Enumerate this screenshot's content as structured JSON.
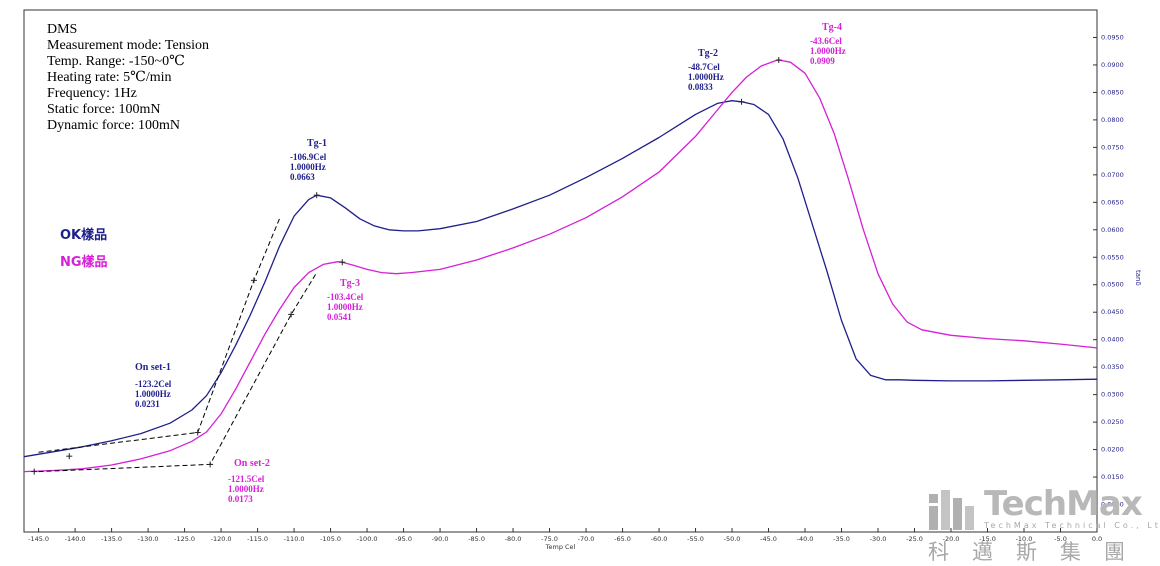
{
  "info_lines": [
    "DMS",
    "Measurement mode: Tension",
    "Temp. Range: -150~0℃",
    "Heating rate: 5℃/min",
    "Frequency: 1Hz",
    "Static force: 100mN",
    "Dynamic force: 100mN"
  ],
  "legend": {
    "ok": "OK樣品",
    "ng": "NG樣品",
    "ok_color": "#1f1f8c",
    "ng_color": "#d61fd6"
  },
  "annotations": {
    "tg1": {
      "title": "Tg-1",
      "lines": [
        "-106.9Cel",
        "1.0000Hz",
        "0.0663"
      ]
    },
    "tg2": {
      "title": "Tg-2",
      "lines": [
        "-48.7Cel",
        "1.0000Hz",
        "0.0833"
      ]
    },
    "tg3": {
      "title": "Tg-3",
      "lines": [
        "-103.4Cel",
        "1.0000Hz",
        "0.0541"
      ]
    },
    "tg4": {
      "title": "Tg-4",
      "lines": [
        "-43.6Cel",
        "1.0000Hz",
        "0.0909"
      ]
    },
    "onset1": {
      "title": "On set-1",
      "lines": [
        "-123.2Cel",
        "1.0000Hz",
        "0.0231"
      ]
    },
    "onset2": {
      "title": "On set-2",
      "lines": [
        "-121.5Cel",
        "1.0000Hz",
        "0.0173"
      ]
    }
  },
  "logo": {
    "word": "TechMax",
    "sub": "TechMax Technical Co., Ltd",
    "cn": "科邁斯集團",
    "color": "#b0b0b0"
  },
  "chart_data": {
    "type": "line",
    "xlabel": "Temp Cel",
    "ylabel": "tanδ",
    "xlim": [
      -147,
      0
    ],
    "ylim": [
      0.005,
      0.1
    ],
    "xticks": [
      -145,
      -140,
      -135,
      -130,
      -125,
      -120,
      -115,
      -110,
      -105,
      -100,
      -95,
      -90,
      -85,
      -80,
      -75,
      -70,
      -65,
      -60,
      -55,
      -50,
      -45,
      -40,
      -35,
      -30,
      -25,
      -20,
      -15,
      -10,
      -5,
      0
    ],
    "xtick_labels": [
      "-145.0",
      "-140.0",
      "-135.0",
      "-130.0",
      "-125.0",
      "-120.0",
      "-115.0",
      "-110.0",
      "-105.0",
      "-100.0",
      "-95.0",
      "-90.0",
      "-85.0",
      "-80.0",
      "-75.0",
      "-70.0",
      "-65.0",
      "-60.0",
      "-55.0",
      "-50.0",
      "-45.0",
      "-40.0",
      "-35.0",
      "-30.0",
      "-25.0",
      "-20.0",
      "-15.0",
      "-10.0",
      "-5.0",
      "0.0"
    ],
    "yticks": [
      0.01,
      0.015,
      0.02,
      0.025,
      0.03,
      0.035,
      0.04,
      0.045,
      0.05,
      0.055,
      0.06,
      0.065,
      0.07,
      0.075,
      0.08,
      0.085,
      0.09,
      0.095
    ],
    "ytick_labels": [
      "0.0100",
      "0.0150",
      "0.0200",
      "0.0250",
      "0.0300",
      "0.0350",
      "0.0400",
      "0.0450",
      "0.0500",
      "0.0550",
      "0.0600",
      "0.0650",
      "0.0700",
      "0.0750",
      "0.0800",
      "0.0850",
      "0.0900",
      "0.0950"
    ],
    "series": [
      {
        "name": "OK樣品",
        "color": "#1f1f8c",
        "x": [
          -147,
          -143,
          -139,
          -135,
          -131,
          -127,
          -124,
          -122,
          -120,
          -118,
          -116,
          -114,
          -112,
          -110,
          -108,
          -106.9,
          -105,
          -103,
          -101,
          -99,
          -97,
          -95,
          -93,
          -90,
          -85,
          -80,
          -75,
          -70,
          -65,
          -60,
          -55,
          -52,
          -50,
          -48.7,
          -47,
          -45,
          -43,
          -41,
          -39,
          -37,
          -35,
          -33,
          -31,
          -29,
          -27,
          -25,
          -20,
          -15,
          -10,
          -5,
          0
        ],
        "y": [
          0.0187,
          0.0196,
          0.0205,
          0.0216,
          0.0229,
          0.0248,
          0.0272,
          0.0298,
          0.034,
          0.039,
          0.0445,
          0.0505,
          0.057,
          0.0625,
          0.0655,
          0.0663,
          0.0658,
          0.064,
          0.062,
          0.0607,
          0.06,
          0.0598,
          0.0598,
          0.0602,
          0.0615,
          0.0638,
          0.0663,
          0.0695,
          0.073,
          0.0768,
          0.081,
          0.083,
          0.0835,
          0.0833,
          0.0828,
          0.081,
          0.0765,
          0.0695,
          0.061,
          0.0525,
          0.0435,
          0.0365,
          0.0335,
          0.0327,
          0.0327,
          0.0326,
          0.0325,
          0.0325,
          0.0326,
          0.0327,
          0.0328
        ]
      },
      {
        "name": "NG樣品",
        "color": "#d61fd6",
        "x": [
          -147,
          -143,
          -139,
          -135,
          -131,
          -127,
          -124,
          -122,
          -120,
          -118,
          -116,
          -114,
          -112,
          -110,
          -108,
          -106,
          -104,
          -103.4,
          -102,
          -100,
          -98,
          -96,
          -94,
          -90,
          -85,
          -80,
          -75,
          -70,
          -65,
          -60,
          -55,
          -52,
          -50,
          -48,
          -46,
          -44,
          -43.6,
          -42,
          -40,
          -38,
          -36,
          -34,
          -32,
          -30,
          -28,
          -26,
          -24,
          -20,
          -15,
          -10,
          -5,
          0
        ],
        "y": [
          0.016,
          0.0162,
          0.0165,
          0.0172,
          0.0183,
          0.0198,
          0.0215,
          0.0232,
          0.0265,
          0.031,
          0.036,
          0.041,
          0.0455,
          0.0495,
          0.0522,
          0.0537,
          0.0542,
          0.0541,
          0.0536,
          0.0528,
          0.0522,
          0.052,
          0.0522,
          0.0528,
          0.0545,
          0.0567,
          0.0592,
          0.0622,
          0.066,
          0.0705,
          0.077,
          0.0818,
          0.085,
          0.0878,
          0.0898,
          0.0908,
          0.0909,
          0.0905,
          0.0885,
          0.084,
          0.0775,
          0.069,
          0.06,
          0.052,
          0.0465,
          0.0432,
          0.0418,
          0.0408,
          0.0402,
          0.0398,
          0.0392,
          0.0385
        ]
      }
    ],
    "tangents": [
      {
        "color": "#000000",
        "x": [
          -145,
          -123.2,
          -115.5,
          -112
        ],
        "y": [
          0.0195,
          0.0231,
          0.0508,
          0.062
        ]
      },
      {
        "color": "#000000",
        "x": [
          -145,
          -121.5,
          -110.4,
          -107
        ],
        "y": [
          0.016,
          0.0173,
          0.0446,
          0.052
        ]
      }
    ],
    "markers": [
      {
        "series": "OK樣品",
        "x": -106.9,
        "y": 0.0663
      },
      {
        "series": "OK樣品",
        "x": -48.7,
        "y": 0.0833
      },
      {
        "series": "NG樣品",
        "x": -103.4,
        "y": 0.0541
      },
      {
        "series": "NG樣品",
        "x": -43.6,
        "y": 0.0909
      },
      {
        "series": "tangent",
        "x": -123.2,
        "y": 0.0231
      },
      {
        "series": "tangent",
        "x": -121.5,
        "y": 0.0173
      },
      {
        "series": "tangent",
        "x": -115.5,
        "y": 0.0508
      },
      {
        "series": "tangent",
        "x": -110.4,
        "y": 0.0446
      },
      {
        "series": "tangent",
        "x": -140.8,
        "y": 0.0188
      },
      {
        "series": "tangent",
        "x": -145.6,
        "y": 0.016
      }
    ],
    "grid": false
  }
}
